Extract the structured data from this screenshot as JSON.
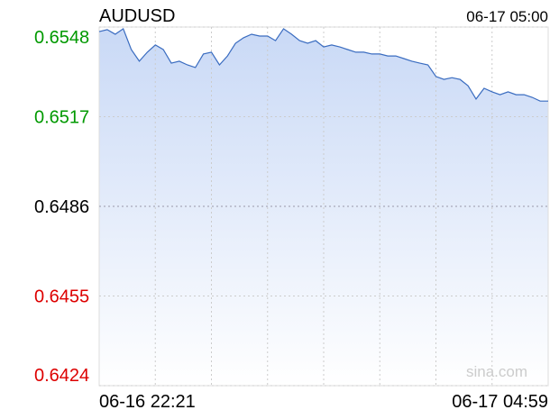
{
  "chart_data": {
    "type": "line",
    "title": "AUDUSD",
    "subtitle": "06-17 05:00",
    "watermark": "sina.com",
    "categories": [
      "06-16 22:21",
      null,
      null,
      null,
      null,
      null,
      null,
      null,
      null,
      null,
      null,
      null,
      null,
      null,
      null,
      null,
      null,
      null,
      null,
      null,
      null,
      null,
      null,
      null,
      null,
      null,
      null,
      null,
      null,
      null,
      null,
      null,
      null,
      null,
      null,
      null,
      null,
      null,
      null,
      null,
      null,
      null,
      null,
      null,
      null,
      null,
      null,
      null,
      null,
      null,
      null,
      null,
      null,
      null,
      null,
      null,
      "06-17 04:59"
    ],
    "series": [
      {
        "name": "AUDUSD",
        "color": "#3a6cc0",
        "values": [
          0.65464,
          0.65471,
          0.65455,
          0.65474,
          0.65402,
          0.65362,
          0.65393,
          0.65418,
          0.65402,
          0.65355,
          0.65362,
          0.65349,
          0.6534,
          0.65387,
          0.65393,
          0.65349,
          0.6538,
          0.65424,
          0.65443,
          0.65455,
          0.65449,
          0.65449,
          0.65433,
          0.65474,
          0.65455,
          0.65433,
          0.65424,
          0.65433,
          0.65411,
          0.65418,
          0.65411,
          0.65402,
          0.65393,
          0.65393,
          0.65387,
          0.65387,
          0.6538,
          0.6538,
          0.65371,
          0.65362,
          0.65355,
          0.65349,
          0.65309,
          0.65299,
          0.65305,
          0.65299,
          0.65277,
          0.65231,
          0.65268,
          0.65256,
          0.65246,
          0.65256,
          0.65246,
          0.65246,
          0.65237,
          0.65224,
          0.65224
        ]
      }
    ],
    "ylim": [
      0.6424,
      0.6548
    ],
    "yticks": [
      0.6424,
      0.6455,
      0.6486,
      0.6517,
      0.6548
    ],
    "base": 0.6486,
    "up_color": "#009900",
    "down_color": "#dd0000",
    "flat_color": "#000000",
    "grid": true
  }
}
